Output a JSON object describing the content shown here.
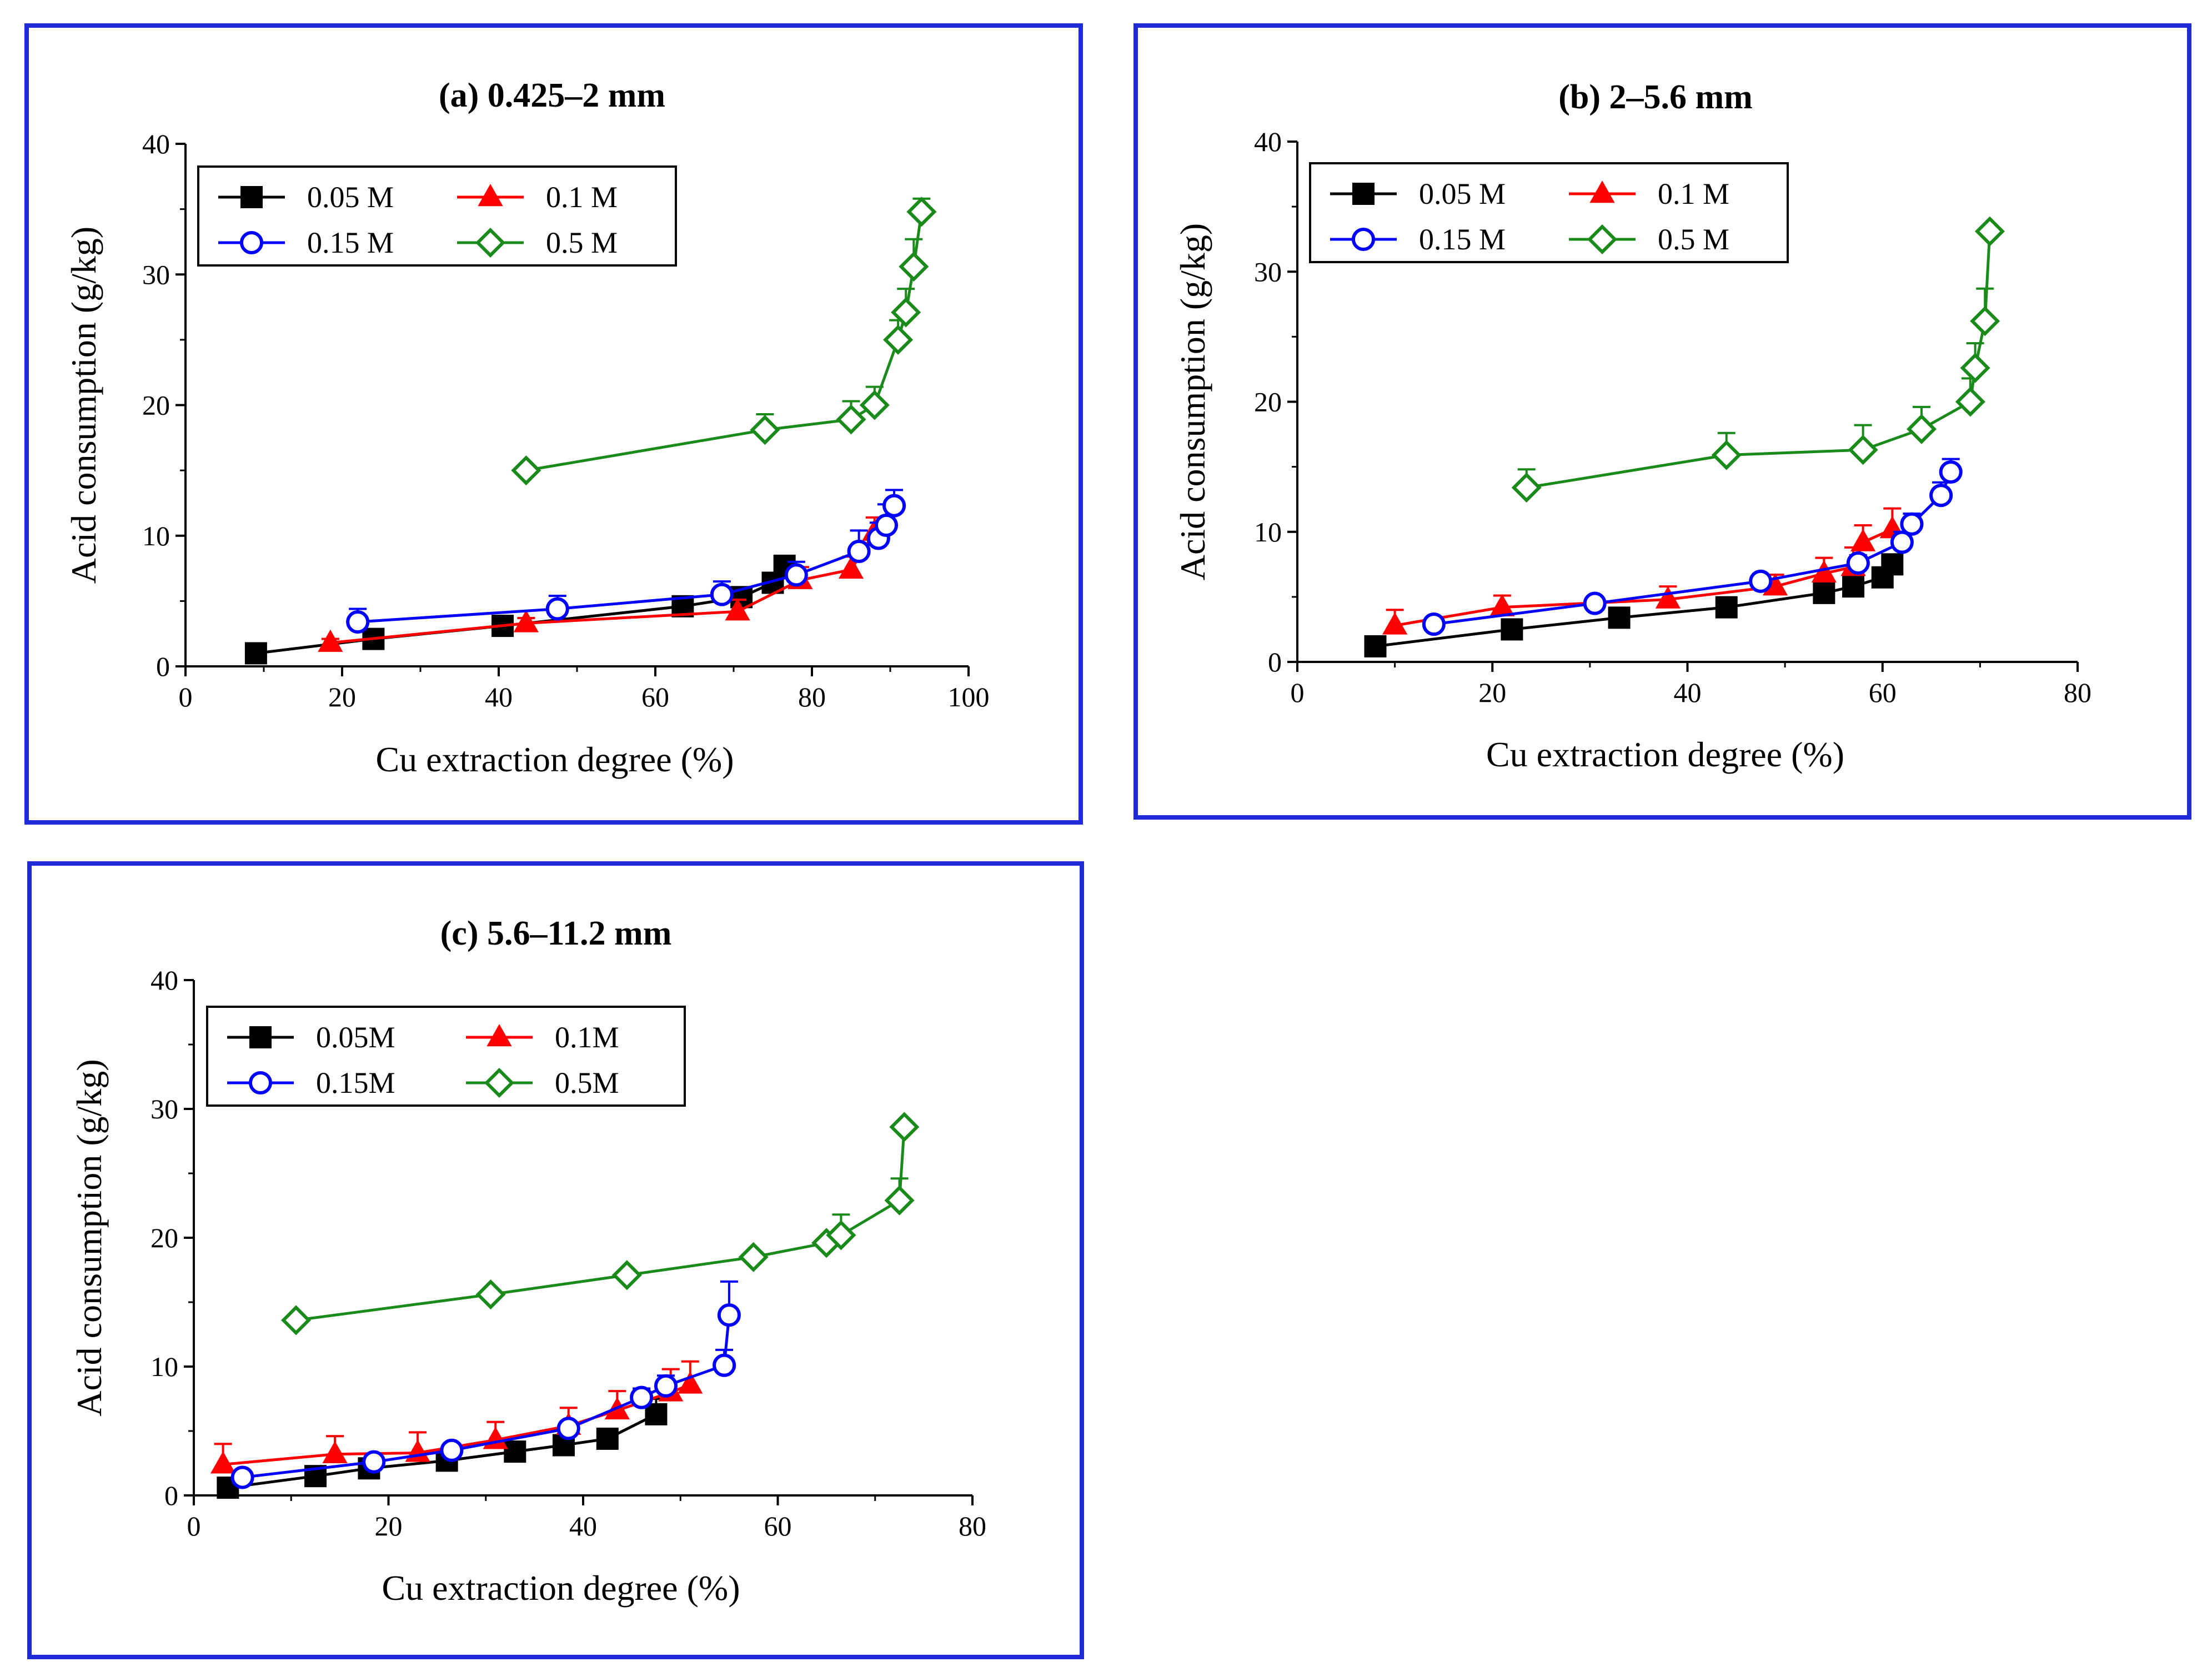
{
  "figure": {
    "panels": [
      "a",
      "b",
      "c"
    ]
  },
  "chart_data": [
    {
      "id": "a",
      "type": "line",
      "title": "(a) 0.425–2 mm",
      "xlabel": "Cu extraction degree (%)",
      "ylabel": "Acid consumption (g/kg)",
      "xlim": [
        0,
        100
      ],
      "ylim": [
        0,
        40
      ],
      "xticks": [
        0,
        20,
        40,
        60,
        80,
        100
      ],
      "yticks": [
        0,
        10,
        20,
        30,
        40
      ],
      "legend_position": "top-left",
      "series": [
        {
          "name": "0.05 M",
          "color": "#000000",
          "marker": "square",
          "x": [
            9,
            24,
            40.5,
            63.5,
            71,
            75,
            76.5
          ],
          "y": [
            1.0,
            2.1,
            3.1,
            4.6,
            5.3,
            6.4,
            7.7
          ],
          "err": [
            0.2,
            0.4,
            0.4,
            0.5,
            0.5,
            0.7,
            0.7
          ]
        },
        {
          "name": "0.1 M",
          "color": "#ff0000",
          "marker": "triangle",
          "x": [
            18.5,
            43.5,
            70.5,
            78.5,
            85,
            88
          ],
          "y": [
            1.8,
            3.3,
            4.2,
            6.6,
            7.4,
            10.3
          ],
          "err": [
            0.3,
            0.4,
            0.9,
            1.0,
            1.0,
            1.1
          ]
        },
        {
          "name": "0.15 M",
          "color": "#0000ff",
          "marker": "circle",
          "x": [
            22,
            47.5,
            68.5,
            78,
            86,
            88.5,
            89.5,
            90.5
          ],
          "y": [
            3.4,
            4.4,
            5.5,
            7.0,
            8.8,
            9.8,
            10.8,
            12.3
          ],
          "err": [
            1.0,
            1.0,
            1.0,
            1.0,
            1.6,
            1.2,
            1.6,
            1.2
          ]
        },
        {
          "name": "0.5 M",
          "color": "#1a8a1a",
          "marker": "diamond",
          "x": [
            43.5,
            74,
            85,
            88,
            91,
            92,
            93,
            94
          ],
          "y": [
            15.0,
            18.1,
            18.9,
            20.0,
            25.0,
            27.1,
            30.6,
            34.8
          ],
          "err": [
            0.2,
            1.2,
            1.4,
            1.4,
            1.5,
            1.8,
            2.1,
            1.0
          ]
        }
      ]
    },
    {
      "id": "b",
      "type": "line",
      "title": "(b) 2–5.6 mm",
      "xlabel": "Cu extraction degree (%)",
      "ylabel": "Acid consumption (g/kg)",
      "xlim": [
        0,
        80
      ],
      "ylim": [
        0,
        40
      ],
      "xticks": [
        0,
        20,
        40,
        60,
        80
      ],
      "yticks": [
        0,
        10,
        20,
        30,
        40
      ],
      "legend_position": "top-left",
      "series": [
        {
          "name": "0.05 M",
          "color": "#000000",
          "marker": "square",
          "x": [
            8,
            22,
            33,
            44,
            54,
            57,
            60,
            61
          ],
          "y": [
            1.2,
            2.5,
            3.4,
            4.2,
            5.3,
            5.8,
            6.5,
            7.5
          ],
          "err": [
            0.3,
            0.4,
            0.4,
            0.4,
            0.5,
            0.6,
            0.6,
            0.6
          ]
        },
        {
          "name": "0.1 M",
          "color": "#ff0000",
          "marker": "triangle",
          "x": [
            10,
            21,
            38,
            49,
            54,
            57,
            58,
            61
          ],
          "y": [
            2.8,
            4.2,
            4.8,
            5.8,
            6.8,
            7.3,
            9.2,
            10.2
          ],
          "err": [
            1.2,
            0.9,
            1.0,
            0.9,
            1.2,
            1.5,
            1.3,
            1.6
          ]
        },
        {
          "name": "0.15 M",
          "color": "#0000ff",
          "marker": "circle",
          "x": [
            14,
            30.5,
            47.5,
            57.5,
            62,
            63,
            66,
            67
          ],
          "y": [
            2.9,
            4.5,
            6.2,
            7.6,
            9.2,
            10.6,
            12.8,
            14.6
          ],
          "err": [
            0.4,
            0.4,
            0.5,
            0.6,
            0.8,
            0.8,
            1.0,
            1.0
          ]
        },
        {
          "name": "0.5 M",
          "color": "#1a8a1a",
          "marker": "diamond",
          "x": [
            23.5,
            44,
            58,
            64,
            69,
            69.5,
            70.5,
            71
          ],
          "y": [
            13.4,
            15.9,
            16.3,
            17.9,
            20.0,
            22.6,
            26.2,
            33.1
          ],
          "err": [
            1.4,
            1.7,
            1.9,
            1.7,
            1.8,
            1.9,
            2.5,
            0.3
          ]
        }
      ]
    },
    {
      "id": "c",
      "type": "line",
      "title": "(c) 5.6–11.2 mm",
      "xlabel": "Cu extraction degree (%)",
      "ylabel": "Acid consumption (g/kg)",
      "xlim": [
        0,
        80
      ],
      "ylim": [
        0,
        40
      ],
      "xticks": [
        0,
        20,
        40,
        60,
        80
      ],
      "yticks": [
        0,
        10,
        20,
        30,
        40
      ],
      "legend_position": "top-left",
      "series": [
        {
          "name": "0.05M",
          "color": "#000000",
          "marker": "square",
          "x": [
            3.5,
            12.5,
            18,
            26,
            33,
            38,
            42.5,
            47.5
          ],
          "y": [
            0.6,
            1.5,
            2.1,
            2.7,
            3.4,
            3.9,
            4.4,
            6.3
          ],
          "err": [
            0.2,
            0.3,
            0.3,
            0.3,
            0.3,
            0.4,
            0.4,
            1.2
          ]
        },
        {
          "name": "0.1M",
          "color": "#ff0000",
          "marker": "triangle",
          "x": [
            3,
            14.5,
            23,
            31,
            38.5,
            43.5,
            49,
            51
          ],
          "y": [
            2.4,
            3.2,
            3.3,
            4.3,
            5.4,
            6.6,
            8.0,
            8.6
          ],
          "err": [
            1.6,
            1.4,
            1.6,
            1.4,
            1.4,
            1.5,
            1.8,
            1.8
          ]
        },
        {
          "name": "0.15M",
          "color": "#0000ff",
          "marker": "circle",
          "x": [
            5,
            18.5,
            26.5,
            38.5,
            46,
            48.5,
            54.5,
            55
          ],
          "y": [
            1.4,
            2.6,
            3.5,
            5.2,
            7.6,
            8.5,
            10.1,
            14.0
          ],
          "err": [
            0.4,
            0.4,
            0.5,
            0.5,
            0.7,
            0.8,
            1.2,
            2.6
          ]
        },
        {
          "name": "0.5M",
          "color": "#1a8a1a",
          "marker": "diamond",
          "x": [
            10.5,
            30.5,
            44.5,
            57.5,
            65,
            66.5,
            72.5,
            73
          ],
          "y": [
            13.6,
            15.6,
            17.1,
            18.5,
            19.6,
            20.2,
            22.9,
            28.6
          ],
          "err": [
            0.1,
            0.2,
            0.2,
            0.2,
            0.3,
            1.6,
            1.7,
            0.1
          ]
        }
      ]
    }
  ]
}
